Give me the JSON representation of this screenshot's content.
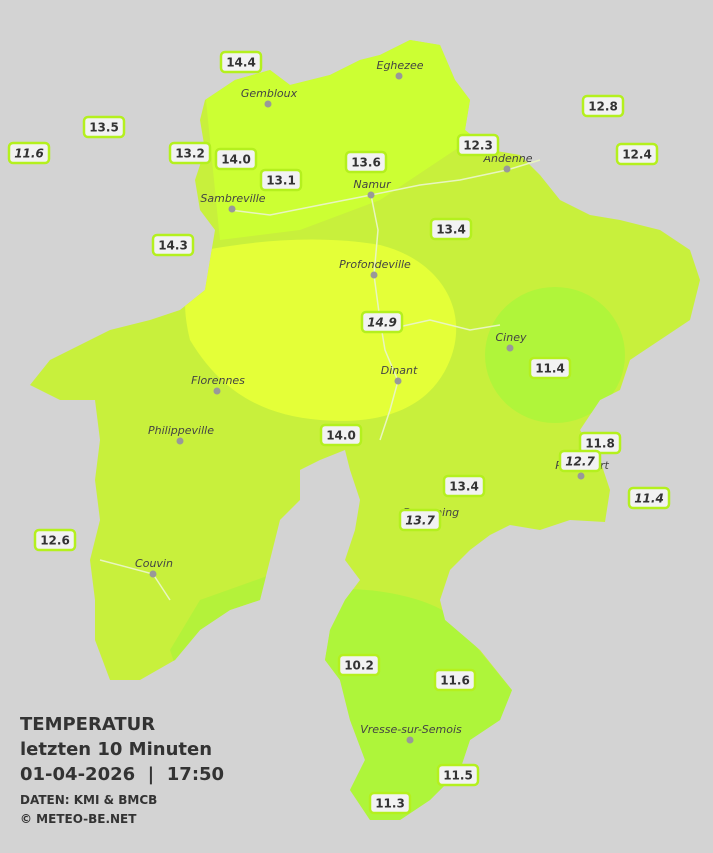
{
  "title": "TEMPERATUR",
  "subtitle": "letzten 10 Minuten",
  "datetime": "01-04-2026  |  17:50",
  "source": "DATEN: KMI & BMCB",
  "copyright": "© METEO-BE.NET",
  "cities": [
    "Eghezee",
    "Gembloux",
    "Andenne",
    "Sambreville",
    "Namur",
    "Profondeville",
    "Ciney",
    "Dinant",
    "Florennes",
    "Philippeville",
    "Couvin",
    "Vresse-sur-Semois",
    "Beauraing",
    "Rochefort"
  ],
  "stations": [
    {
      "value": "14.4",
      "italic": false
    },
    {
      "value": "13.5",
      "italic": false
    },
    {
      "value": "11.6",
      "italic": true
    },
    {
      "value": "13.2",
      "italic": false
    },
    {
      "value": "14.0",
      "italic": false
    },
    {
      "value": "13.1",
      "italic": false
    },
    {
      "value": "13.6",
      "italic": false
    },
    {
      "value": "12.3",
      "italic": false
    },
    {
      "value": "12.8",
      "italic": false
    },
    {
      "value": "12.4",
      "italic": false
    },
    {
      "value": "14.3",
      "italic": false
    },
    {
      "value": "13.4",
      "italic": false
    },
    {
      "value": "14.9",
      "italic": true
    },
    {
      "value": "11.4",
      "italic": false
    },
    {
      "value": "14.0",
      "italic": false
    },
    {
      "value": "11.8",
      "italic": false
    },
    {
      "value": "12.7",
      "italic": true
    },
    {
      "value": "13.4",
      "italic": false
    },
    {
      "value": "11.4",
      "italic": true
    },
    {
      "value": "13.7",
      "italic": true
    },
    {
      "value": "12.6",
      "italic": false
    },
    {
      "value": "10.2",
      "italic": false
    },
    {
      "value": "11.6",
      "italic": false
    },
    {
      "value": "11.5",
      "italic": false
    },
    {
      "value": "11.3",
      "italic": false
    }
  ]
}
